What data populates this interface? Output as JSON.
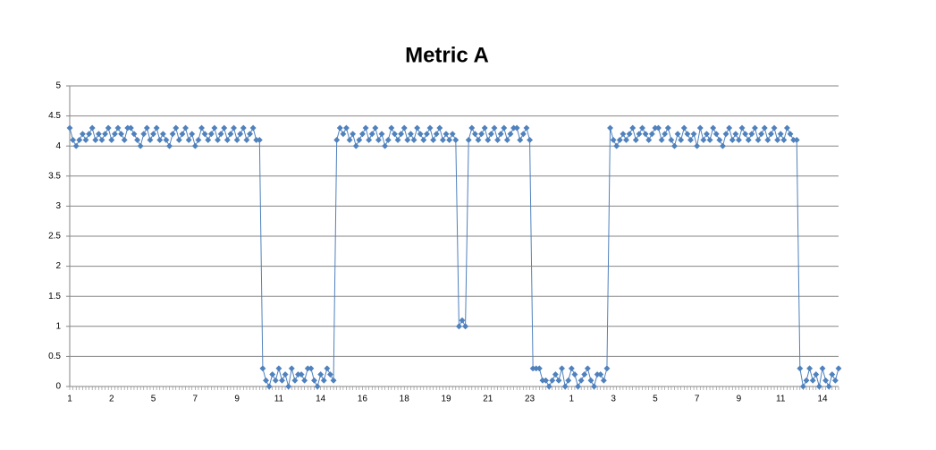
{
  "chart_data": {
    "type": "line",
    "title": "Metric A",
    "categories": [
      "1",
      null,
      null,
      null,
      null,
      null,
      null,
      null,
      null,
      null,
      null,
      null,
      null,
      "2",
      null,
      null,
      null,
      null,
      null,
      null,
      null,
      null,
      null,
      null,
      null,
      null,
      "5",
      null,
      null,
      null,
      null,
      null,
      null,
      null,
      null,
      null,
      null,
      null,
      null,
      "7",
      null,
      null,
      null,
      null,
      null,
      null,
      null,
      null,
      null,
      null,
      null,
      null,
      "9",
      null,
      null,
      null,
      null,
      null,
      null,
      null,
      null,
      null,
      null,
      null,
      null,
      "11",
      null,
      null,
      null,
      null,
      null,
      null,
      null,
      null,
      null,
      null,
      null,
      null,
      "14",
      null,
      null,
      null,
      null,
      null,
      null,
      null,
      null,
      null,
      null,
      null,
      null,
      "16",
      null,
      null,
      null,
      null,
      null,
      null,
      null,
      null,
      null,
      null,
      null,
      null,
      "18",
      null,
      null,
      null,
      null,
      null,
      null,
      null,
      null,
      null,
      null,
      null,
      null,
      "19",
      null,
      null,
      null,
      null,
      null,
      null,
      null,
      null,
      null,
      null,
      null,
      null,
      "21",
      null,
      null,
      null,
      null,
      null,
      null,
      null,
      null,
      null,
      null,
      null,
      null,
      "23",
      null,
      null,
      null,
      null,
      null,
      null,
      null,
      null,
      null,
      null,
      null,
      null,
      "1",
      null,
      null,
      null,
      null,
      null,
      null,
      null,
      null,
      null,
      null,
      null,
      null,
      "3",
      null,
      null,
      null,
      null,
      null,
      null,
      null,
      null,
      null,
      null,
      null,
      null,
      "5",
      null,
      null,
      null,
      null,
      null,
      null,
      null,
      null,
      null,
      null,
      null,
      null,
      "7",
      null,
      null,
      null,
      null,
      null,
      null,
      null,
      null,
      null,
      null,
      null,
      null,
      "9",
      null,
      null,
      null,
      null,
      null,
      null,
      null,
      null,
      null,
      null,
      null,
      null,
      "11",
      null,
      null,
      null,
      null,
      null,
      null,
      null,
      null,
      null,
      null,
      null,
      null,
      "14",
      null,
      null,
      null,
      null,
      null
    ],
    "values": [
      4.3,
      4.1,
      4,
      4.1,
      4.2,
      4.1,
      4.2,
      4.3,
      4.1,
      4.2,
      4.1,
      4.2,
      4.3,
      4.1,
      4.2,
      4.3,
      4.2,
      4.1,
      4.3,
      4.3,
      4.2,
      4.1,
      4,
      4.2,
      4.3,
      4.1,
      4.2,
      4.3,
      4.1,
      4.2,
      4.1,
      4,
      4.2,
      4.3,
      4.1,
      4.2,
      4.3,
      4.1,
      4.2,
      4,
      4.1,
      4.3,
      4.2,
      4.1,
      4.2,
      4.3,
      4.1,
      4.2,
      4.3,
      4.1,
      4.2,
      4.3,
      4.1,
      4.2,
      4.3,
      4.1,
      4.2,
      4.3,
      4.1,
      4.1,
      0.3,
      0.1,
      0,
      0.2,
      0.1,
      0.3,
      0.1,
      0.2,
      0,
      0.3,
      0.1,
      0.2,
      0.2,
      0.1,
      0.3,
      0.3,
      0.1,
      0,
      0.2,
      0.1,
      0.3,
      0.2,
      0.1,
      4.1,
      4.3,
      4.2,
      4.3,
      4.1,
      4.2,
      4,
      4.1,
      4.2,
      4.3,
      4.1,
      4.2,
      4.3,
      4.1,
      4.2,
      4,
      4.1,
      4.3,
      4.2,
      4.1,
      4.2,
      4.3,
      4.1,
      4.2,
      4.1,
      4.3,
      4.2,
      4.1,
      4.2,
      4.3,
      4.1,
      4.2,
      4.3,
      4.1,
      4.2,
      4.1,
      4.2,
      4.1,
      1,
      1.1,
      1,
      4.1,
      4.3,
      4.2,
      4.1,
      4.2,
      4.3,
      4.1,
      4.2,
      4.3,
      4.1,
      4.2,
      4.3,
      4.1,
      4.2,
      4.3,
      4.3,
      4.1,
      4.2,
      4.3,
      4.1,
      0.3,
      0.3,
      0.3,
      0.1,
      0.1,
      0,
      0.1,
      0.2,
      0.1,
      0.3,
      0,
      0.1,
      0.3,
      0.2,
      0,
      0.1,
      0.2,
      0.3,
      0.1,
      0,
      0.2,
      0.2,
      0.1,
      0.3,
      4.3,
      4.1,
      4,
      4.1,
      4.2,
      4.1,
      4.2,
      4.3,
      4.1,
      4.2,
      4.3,
      4.2,
      4.1,
      4.2,
      4.3,
      4.3,
      4.1,
      4.2,
      4.3,
      4.1,
      4,
      4.2,
      4.1,
      4.3,
      4.2,
      4.1,
      4.2,
      4,
      4.3,
      4.1,
      4.2,
      4.1,
      4.3,
      4.2,
      4.1,
      4,
      4.2,
      4.3,
      4.1,
      4.2,
      4.1,
      4.3,
      4.2,
      4.1,
      4.2,
      4.3,
      4.1,
      4.2,
      4.3,
      4.1,
      4.2,
      4.3,
      4.1,
      4.2,
      4.1,
      4.3,
      4.2,
      4.1,
      4.1,
      0.3,
      0,
      0.1,
      0.3,
      0.1,
      0.2,
      0,
      0.3,
      0.1,
      0,
      0.2,
      0.1,
      0.3
    ],
    "color": "#4f81bd",
    "ylim": [
      0,
      5
    ],
    "yticks": [
      0,
      0.5,
      1,
      1.5,
      2,
      2.5,
      3,
      3.5,
      4,
      4.5,
      5
    ],
    "grid": true
  }
}
